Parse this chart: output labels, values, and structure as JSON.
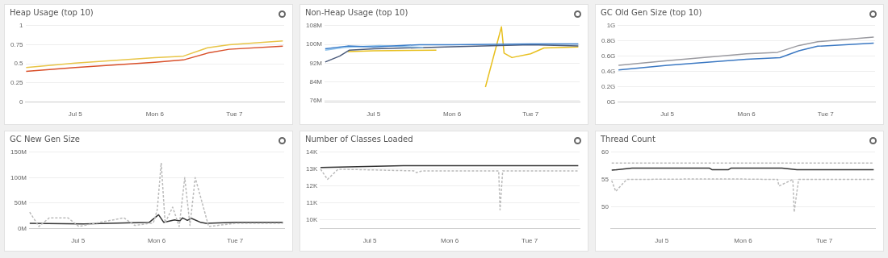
{
  "chart_data": [
    {
      "type": "line",
      "title": "Heap Usage (top 10)",
      "xlim": [
        "--07-04T09:00",
        "--07-07T15:00"
      ],
      "xticks": [
        {
          "value": "--07-05",
          "label": "Jul 5"
        },
        {
          "value": "--07-06",
          "label": "Mon 6"
        },
        {
          "value": "--07-07",
          "label": "Tue 7"
        }
      ],
      "ylim": [
        0,
        1
      ],
      "yticks": [
        0,
        0.25,
        0.5,
        0.75,
        1
      ],
      "grid": "y",
      "marker": "none",
      "x": [
        "--07-04T09:12",
        "--07-05T00:00",
        "--07-06T00:00",
        "--07-06T08:36",
        "--07-06T15:54",
        "--07-06T22:24",
        "--07-07T14:36"
      ],
      "series": [
        {
          "color": "#e8c547",
          "values": [
            0.45,
            0.51,
            0.58,
            0.6,
            0.71,
            0.75,
            0.8
          ]
        },
        {
          "color": "#d9502a",
          "values": [
            0.4,
            0.45,
            0.52,
            0.55,
            0.64,
            0.69,
            0.73
          ]
        }
      ]
    },
    {
      "type": "line",
      "title": "Non-Heap Usage (top 10)",
      "xlim": [
        "--07-04T09:00",
        "--07-07T15:00"
      ],
      "xticks": [
        {
          "value": "--07-05",
          "label": "Jul 5"
        },
        {
          "value": "--07-06",
          "label": "Mon 6"
        },
        {
          "value": "--07-07",
          "label": "Tue 7"
        }
      ],
      "ylim": [
        75.5,
        108
      ],
      "yticks": [
        {
          "value": 76,
          "label": "76M"
        },
        {
          "value": 84,
          "label": "84M"
        },
        {
          "value": 92,
          "label": "92M"
        },
        {
          "value": 100,
          "label": "100M"
        },
        {
          "value": 108,
          "label": "108M"
        }
      ],
      "grid": "y",
      "marker": "none",
      "series": [
        {
          "color": "#3a7dc9",
          "x": [
            "--07-04T09:12",
            "--07-04T16:06",
            "--07-05T00:00",
            "--07-05T14:00",
            "--07-06T00:00",
            "--07-07T00:00",
            "--07-07T14:36"
          ],
          "values": [
            98.1,
            99.3,
            98.9,
            99.9,
            99.9,
            100.2,
            100.2
          ]
        },
        {
          "color": "#8ec1ea",
          "x": [
            "--07-04T09:12",
            "--07-04T15:12",
            "--07-05T01:48",
            "--07-05T15:12"
          ],
          "values": [
            97.5,
            98.7,
            99.5,
            98.7
          ]
        },
        {
          "color": "#4a5a7a",
          "x": [
            "--07-04T09:12",
            "--07-04T13:36",
            "--07-04T16:30",
            "--07-05T00:12",
            "--07-06T00:00",
            "--07-07T00:00",
            "--07-07T14:36"
          ],
          "values": [
            92.5,
            95,
            97.5,
            98.1,
            99,
            99.9,
            99.3
          ]
        },
        {
          "color": "#e8c020",
          "x": [
            "--07-04T16:06",
            "--07-05T00:00",
            "--07-05T19:12",
            "--07-06T02:00",
            "--07-06T10:12",
            "--07-06T15:06",
            "--07-06T15:54",
            "--07-06T18:18",
            "--07-07T00:00",
            "--07-07T04:06",
            "--07-07T14:36"
          ],
          "values": [
            96.9,
            97.3,
            97.5,
            null,
            81.8,
            107.5,
            96.3,
            94.4,
            96,
            98.5,
            98.9
          ]
        }
      ]
    },
    {
      "type": "line",
      "title": "GC Old Gen Size (top 10)",
      "xlim": [
        "--07-04T09:00",
        "--07-07T15:00"
      ],
      "xticks": [
        {
          "value": "--07-05",
          "label": "Jul 5"
        },
        {
          "value": "--07-06",
          "label": "Mon 6"
        },
        {
          "value": "--07-07",
          "label": "Tue 7"
        }
      ],
      "ylim": [
        0,
        1
      ],
      "yticks": [
        {
          "value": 0,
          "label": "0G"
        },
        {
          "value": 0.2,
          "label": "0.2G"
        },
        {
          "value": 0.4,
          "label": "0.4G"
        },
        {
          "value": 0.6,
          "label": "0.6G"
        },
        {
          "value": 0.8,
          "label": "0.8G"
        },
        {
          "value": 1,
          "label": "1G"
        }
      ],
      "grid": "y",
      "marker": "none",
      "series": [
        {
          "color": "#9a9aa0",
          "x": [
            "--07-04T09:12",
            "--07-05T00:00",
            "--07-06T00:00",
            "--07-06T09:24",
            "--07-06T15:54",
            "--07-06T21:36",
            "--07-07T14:36"
          ],
          "values": [
            0.48,
            0.54,
            0.63,
            0.65,
            0.74,
            0.79,
            0.85
          ]
        },
        {
          "color": "#3b78c2",
          "x": [
            "--07-04T09:12",
            "--07-05T00:00",
            "--07-06T00:00",
            "--07-06T10:12",
            "--07-06T15:54",
            "--07-06T21:36",
            "--07-07T14:36"
          ],
          "values": [
            0.42,
            0.48,
            0.56,
            0.58,
            0.67,
            0.73,
            0.77
          ]
        }
      ]
    },
    {
      "type": "line",
      "title": "GC New Gen Size",
      "xlim": [
        "--07-04T09:00",
        "--07-07T15:00"
      ],
      "xticks": [
        {
          "value": "--07-05",
          "label": "Jul 5"
        },
        {
          "value": "--07-06",
          "label": "Mon 6"
        },
        {
          "value": "--07-07",
          "label": "Tue 7"
        }
      ],
      "ylim": [
        0,
        150
      ],
      "yticks": [
        {
          "value": 0,
          "label": "0M"
        },
        {
          "value": 50,
          "label": "50M"
        },
        {
          "value": 100,
          "label": "100M"
        },
        {
          "value": 150,
          "label": "150M"
        }
      ],
      "grid": "y",
      "marker": "none",
      "series": [
        {
          "color": "#bbbbbb",
          "line_style": "dashed",
          "x": [
            "--07-04T09:12",
            "--07-04T12:00",
            "--07-04T15:12",
            "--07-04T20:54",
            "--07-05T00:12",
            "--07-05T14:00",
            "--07-05T17:18",
            "--07-05T23:00",
            "--07-06T00:12",
            "--07-06T01:24",
            "--07-06T02:36",
            "--07-06T04:54",
            "--07-06T06:54",
            "--07-06T08:36",
            "--07-06T10:12",
            "--07-06T11:48",
            "--07-06T14:18",
            "--07-06T15:54",
            "--07-07T00:00",
            "--07-07T14:36"
          ],
          "values": [
            32,
            4,
            21,
            21,
            4,
            21,
            6,
            11,
            37,
            129,
            11,
            42,
            4,
            100,
            6,
            100,
            42,
            4,
            10,
            10
          ]
        },
        {
          "color": "#333333",
          "x": [
            "--07-04T09:12",
            "--07-05T01:48",
            "--07-05T21:42",
            "--07-06T00:36",
            "--07-06T02:12",
            "--07-06T05:30",
            "--07-06T07:06",
            "--07-06T07:54",
            "--07-06T09:24",
            "--07-06T10:36",
            "--07-06T13:30",
            "--07-06T15:06",
            "--07-07T00:00",
            "--07-07T14:36"
          ],
          "values": [
            10,
            9,
            12,
            27,
            12,
            17,
            15,
            21,
            16,
            20,
            12,
            10,
            12,
            12
          ]
        }
      ]
    },
    {
      "type": "line",
      "title": "Number of Classes Loaded",
      "xlim": [
        "--07-04T09:00",
        "--07-07T15:00"
      ],
      "xticks": [
        {
          "value": "--07-05",
          "label": "Jul 5"
        },
        {
          "value": "--07-06",
          "label": "Mon 6"
        },
        {
          "value": "--07-07",
          "label": "Tue 7"
        }
      ],
      "ylim": [
        9.5,
        14
      ],
      "yticks": [
        {
          "value": 10,
          "label": "10K"
        },
        {
          "value": 11,
          "label": "11K"
        },
        {
          "value": 12,
          "label": "12K"
        },
        {
          "value": 13,
          "label": "13K"
        },
        {
          "value": 14,
          "label": "14K"
        }
      ],
      "grid": "y",
      "marker": "none",
      "series": [
        {
          "color": "#bbbbbb",
          "line_style": "dashed",
          "x": [
            "--07-04T09:12",
            "--07-04T11:18",
            "--07-04T14:30",
            "--07-05T13:12",
            "--07-05T14:00",
            "--07-05T15:42",
            "--07-06T10:12",
            "--07-06T14:42",
            "--07-06T15:06",
            "--07-06T15:54",
            "--07-07T14:36"
          ],
          "values": [
            13,
            12.4,
            13,
            12.9,
            12.8,
            12.9,
            12.9,
            12.9,
            10.6,
            12.9,
            12.9
          ]
        },
        {
          "color": "#333333",
          "x": [
            "--07-04T09:12",
            "--07-05T10:00",
            "--07-06T10:12",
            "--07-07T14:36"
          ],
          "values": [
            13.1,
            13.2,
            13.2,
            13.2
          ]
        }
      ]
    },
    {
      "type": "line",
      "title": "Thread Count",
      "xlim": [
        "--07-04T09:00",
        "--07-07T15:00"
      ],
      "xticks": [
        {
          "value": "--07-05",
          "label": "Jul 5"
        },
        {
          "value": "--07-06",
          "label": "Mon 6"
        },
        {
          "value": "--07-07",
          "label": "Tue 7"
        }
      ],
      "ylim": [
        46,
        60
      ],
      "yticks": [
        50,
        55,
        60
      ],
      "grid": "y",
      "marker": "none",
      "series": [
        {
          "color": "#bbbbbb",
          "line_style": "dashed",
          "x": [
            "--07-04T09:12",
            "--07-07T14:36"
          ],
          "values": [
            58,
            58
          ]
        },
        {
          "color": "#bbbbbb",
          "line_style": "dashed",
          "x": [
            "--07-04T09:12",
            "--07-04T10:24",
            "--07-04T13:36",
            "--07-05T14:00",
            "--07-05T19:42",
            "--07-06T10:12",
            "--07-06T10:36",
            "--07-06T14:42",
            "--07-06T15:06",
            "--07-06T16:24",
            "--07-07T14:36"
          ],
          "values": [
            54.8,
            52.8,
            55,
            55.1,
            55.1,
            55,
            53.8,
            55,
            49,
            55,
            55
          ]
        },
        {
          "color": "#333333",
          "x": [
            "--07-04T09:12",
            "--07-04T15:12",
            "--07-05T14:00",
            "--07-05T14:48",
            "--07-05T19:42",
            "--07-05T20:30",
            "--07-06T11:30",
            "--07-06T15:54",
            "--07-07T14:36"
          ],
          "values": [
            56.7,
            57.1,
            57.1,
            56.8,
            56.8,
            57.1,
            57.1,
            56.8,
            56.8
          ]
        }
      ]
    }
  ]
}
